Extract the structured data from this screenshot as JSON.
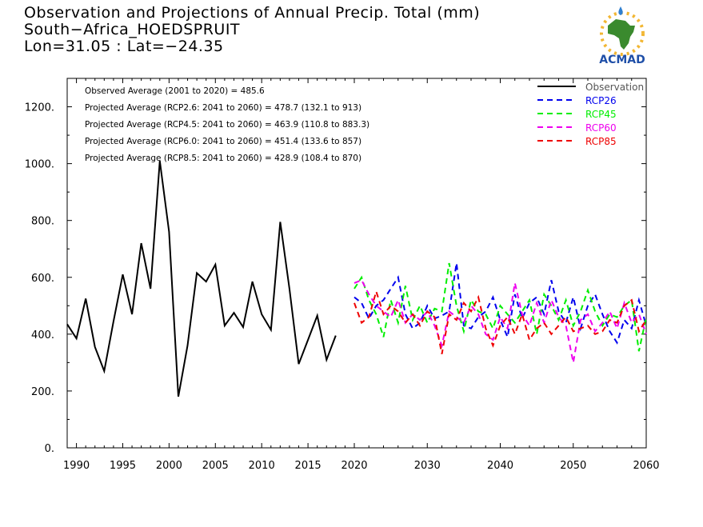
{
  "title": {
    "line1": "Observation and Projections of Annual Precip. Total (mm)",
    "line2": "South−Africa_HOEDSPRUIT",
    "line3": "Lon=31.05 : Lat=−24.35"
  },
  "logo": {
    "text": "ACMAD",
    "icon": "africa-map-logo"
  },
  "annotations": [
    "Observed Average (2001 to 2020) = 485.6",
    "Projected Average (RCP2.6: 2041 to 2060) = 478.7 (132.1 to 913)",
    "Projected Average (RCP4.5: 2041 to 2060) = 463.9 (110.8 to 883.3)",
    "Projected Average (RCP6.0: 2041 to 2060) = 451.4 (133.6 to 857)",
    "Projected Average (RCP8.5: 2041 to 2060) = 428.9 (108.4 to 870)"
  ],
  "colors": {
    "Observation": "#000000",
    "RCP26": "#0000ee",
    "RCP45": "#00ee00",
    "RCP60": "#ee00ee",
    "RCP85": "#ee0000"
  },
  "chart_data": {
    "type": "line",
    "title": "Observation and Projections of Annual Precip. Total (mm)",
    "xlabel": "",
    "ylabel": "",
    "xlim": [
      1989,
      2060
    ],
    "ylim": [
      0,
      1300
    ],
    "x_ticks_left": [
      "1990",
      "1995",
      "2000",
      "2005",
      "2010",
      "2015",
      "2020"
    ],
    "x_ticks_right": [
      "2030",
      "2040",
      "2050",
      "2060"
    ],
    "y_ticks": [
      "0.",
      "200.",
      "400.",
      "600.",
      "800.",
      "1000.",
      "1200."
    ],
    "y_tick_values": [
      0,
      200,
      400,
      600,
      800,
      1000,
      1200
    ],
    "legend_position": "top-right",
    "grid": false,
    "series": [
      {
        "name": "Observation",
        "style": "solid",
        "x": [
          1989,
          1990,
          1991,
          1992,
          1993,
          1994,
          1995,
          1996,
          1997,
          1998,
          1999,
          2000,
          2001,
          2002,
          2003,
          2004,
          2005,
          2006,
          2007,
          2008,
          2009,
          2010,
          2011,
          2012,
          2013,
          2014,
          2015,
          2016,
          2017,
          2018,
          2019,
          2020
        ],
        "y": [
          435,
          385,
          525,
          355,
          270,
          445,
          610,
          470,
          720,
          560,
          1010,
          760,
          180,
          360,
          615,
          585,
          645,
          430,
          475,
          425,
          585,
          470,
          415,
          795,
          560,
          295,
          380,
          465,
          310,
          395,
          null,
          null
        ]
      },
      {
        "name": "RCP26",
        "style": "dashed",
        "x": [
          2020,
          2021,
          2022,
          2023,
          2024,
          2025,
          2026,
          2027,
          2028,
          2029,
          2030,
          2031,
          2032,
          2033,
          2034,
          2035,
          2036,
          2037,
          2038,
          2039,
          2040,
          2041,
          2042,
          2043,
          2044,
          2045,
          2046,
          2047,
          2048,
          2049,
          2050,
          2051,
          2052,
          2053,
          2054,
          2055,
          2056,
          2057,
          2058,
          2059,
          2060
        ],
        "y": [
          530,
          510,
          455,
          500,
          520,
          560,
          600,
          470,
          420,
          440,
          500,
          455,
          465,
          480,
          650,
          430,
          420,
          460,
          480,
          530,
          450,
          390,
          540,
          455,
          510,
          530,
          470,
          590,
          480,
          440,
          530,
          420,
          500,
          540,
          470,
          410,
          370,
          450,
          420,
          520,
          430
        ]
      },
      {
        "name": "RCP45",
        "style": "dashed",
        "x": [
          2020,
          2021,
          2022,
          2023,
          2024,
          2025,
          2026,
          2027,
          2028,
          2029,
          2030,
          2031,
          2032,
          2033,
          2034,
          2035,
          2036,
          2037,
          2038,
          2039,
          2040,
          2041,
          2042,
          2043,
          2044,
          2045,
          2046,
          2047,
          2048,
          2049,
          2050,
          2051,
          2052,
          2053,
          2054,
          2055,
          2056,
          2057,
          2058,
          2059,
          2060
        ],
        "y": [
          560,
          600,
          520,
          470,
          390,
          520,
          440,
          570,
          450,
          500,
          440,
          490,
          480,
          650,
          500,
          410,
          520,
          480,
          470,
          420,
          500,
          470,
          440,
          480,
          520,
          400,
          540,
          500,
          450,
          520,
          430,
          480,
          555,
          480,
          430,
          470,
          460,
          500,
          520,
          340,
          460
        ]
      },
      {
        "name": "RCP60",
        "style": "dashed",
        "x": [
          2020,
          2021,
          2022,
          2023,
          2024,
          2025,
          2026,
          2027,
          2028,
          2029,
          2030,
          2031,
          2032,
          2033,
          2034,
          2035,
          2036,
          2037,
          2038,
          2039,
          2040,
          2041,
          2042,
          2043,
          2044,
          2045,
          2046,
          2047,
          2048,
          2049,
          2050,
          2051,
          2052,
          2053,
          2054,
          2055,
          2056,
          2057,
          2058,
          2059,
          2060
        ],
        "y": [
          580,
          590,
          540,
          500,
          480,
          460,
          520,
          440,
          470,
          450,
          480,
          430,
          360,
          480,
          460,
          440,
          500,
          470,
          400,
          380,
          460,
          420,
          580,
          470,
          430,
          510,
          440,
          520,
          460,
          430,
          300,
          450,
          470,
          410,
          440,
          480,
          420,
          510,
          440,
          470,
          400
        ]
      },
      {
        "name": "RCP85",
        "style": "dashed",
        "x": [
          2020,
          2021,
          2022,
          2023,
          2024,
          2025,
          2026,
          2027,
          2028,
          2029,
          2030,
          2031,
          2032,
          2033,
          2034,
          2035,
          2036,
          2037,
          2038,
          2039,
          2040,
          2041,
          2042,
          2043,
          2044,
          2045,
          2046,
          2047,
          2048,
          2049,
          2050,
          2051,
          2052,
          2053,
          2054,
          2055,
          2056,
          2057,
          2058,
          2059,
          2060
        ],
        "y": [
          510,
          440,
          460,
          550,
          470,
          500,
          480,
          440,
          470,
          430,
          480,
          460,
          330,
          470,
          450,
          510,
          480,
          530,
          420,
          360,
          430,
          460,
          400,
          470,
          380,
          420,
          440,
          400,
          430,
          460,
          410,
          420,
          430,
          400,
          410,
          450,
          440,
          500,
          520,
          410,
          450
        ]
      }
    ]
  }
}
